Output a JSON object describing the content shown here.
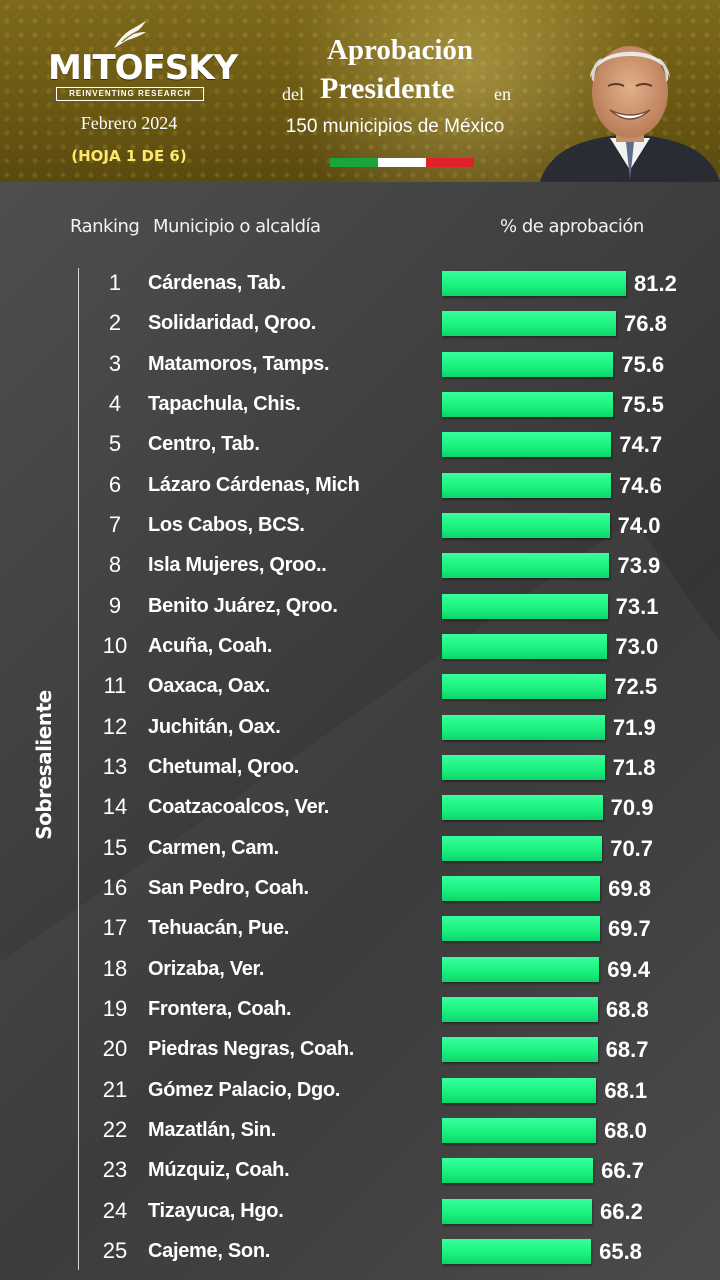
{
  "header": {
    "logo_text": "MITOFSKY",
    "logo_subtitle": "REINVENTING RESEARCH",
    "date": "Febrero 2024",
    "sheet": "(HOJA 1 DE 6)",
    "title_line1": "Aprobación",
    "title_del": "del",
    "title_presidente": "Presidente",
    "title_en": "en",
    "title_line3": "150 municipios de México",
    "flag_colors": [
      "#19a53c",
      "#ffffff",
      "#e0202a"
    ]
  },
  "columns": {
    "ranking": "Ranking",
    "municipio": "Municipio o alcaldía",
    "aprobacion": "% de aprobación"
  },
  "side_label": "Sobresaliente",
  "colors": {
    "bar": "#19f07d",
    "background": "#3a3a3a",
    "header": "#6a5712"
  },
  "chart_data": {
    "type": "bar",
    "orientation": "horizontal",
    "ranks": [
      "1",
      "2",
      "3",
      "4",
      "5",
      "6",
      "7",
      "8",
      "9",
      "10",
      "11",
      "12",
      "13",
      "14",
      "15",
      "16",
      "17",
      "18",
      "19",
      "20",
      "21",
      "22",
      "23",
      "24",
      "25"
    ],
    "categories": [
      "Cárdenas, Tab.",
      "Solidaridad, Qroo.",
      "Matamoros, Tamps.",
      "Tapachula, Chis.",
      "Centro, Tab.",
      "Lázaro Cárdenas, Mich",
      "Los Cabos, BCS.",
      "Isla Mujeres, Qroo..",
      "Benito Juárez, Qroo.",
      "Acuña, Coah.",
      "Oaxaca, Oax.",
      "Juchitán, Oax.",
      "Chetumal, Qroo.",
      "Coatzacoalcos, Ver.",
      "Carmen, Cam.",
      "San Pedro, Coah.",
      "Tehuacán, Pue.",
      "Orizaba, Ver.",
      "Frontera, Coah.",
      "Piedras Negras, Coah.",
      "Gómez Palacio, Dgo.",
      "Mazatlán, Sin.",
      "Múzquiz, Coah.",
      "Tizayuca, Hgo.",
      "Cajeme, Son."
    ],
    "values": [
      81.2,
      76.8,
      75.6,
      75.5,
      74.7,
      74.6,
      74.0,
      73.9,
      73.1,
      73.0,
      72.5,
      71.9,
      71.8,
      70.9,
      70.7,
      69.8,
      69.7,
      69.4,
      68.8,
      68.7,
      68.1,
      68.0,
      66.7,
      66.2,
      65.8
    ],
    "value_labels": [
      "81.2",
      "76.8",
      "75.6",
      "75.5",
      "74.7",
      "74.6",
      "74.0",
      "73.9",
      "73.1",
      "73.0",
      "72.5",
      "71.9",
      "71.8",
      "70.9",
      "70.7",
      "69.8",
      "69.7",
      "69.4",
      "68.8",
      "68.7",
      "68.1",
      "68.0",
      "66.7",
      "66.2",
      "65.8"
    ],
    "xlim": [
      0,
      100
    ],
    "grid": false
  }
}
